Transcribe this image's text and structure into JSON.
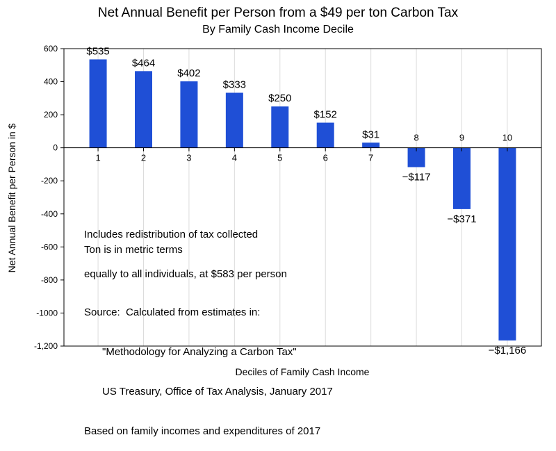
{
  "chart_data": {
    "type": "bar",
    "title": "Net Annual Benefit per Person from a $49 per ton Carbon Tax",
    "subtitle": "By Family Cash Income Decile",
    "xlabel": "Deciles of Family Cash Income",
    "ylabel": "Net Annual Benefit per Person in $",
    "categories": [
      "1",
      "2",
      "3",
      "4",
      "5",
      "6",
      "7",
      "8",
      "9",
      "10"
    ],
    "values": [
      535,
      464,
      402,
      333,
      250,
      152,
      31,
      -117,
      -371,
      -1166
    ],
    "data_labels": [
      "$535",
      "$464",
      "$402",
      "$333",
      "$250",
      "$152",
      "$31",
      "−$117",
      "−$371",
      "−$1,166"
    ],
    "ylim": [
      -1200,
      600
    ],
    "yticks": [
      600,
      400,
      200,
      0,
      -200,
      -400,
      -600,
      -800,
      -1000,
      -1200
    ],
    "ytick_labels": [
      "600",
      "400",
      "200",
      "0",
      "-200",
      "-400",
      "-600",
      "-800",
      "-1000",
      "-1,200"
    ],
    "bar_color": "#1f4fd6",
    "grid": "vertical",
    "annotations": {
      "redistribution_line1": "Includes redistribution of tax collected",
      "redistribution_line2": "equally to all individuals, at $583 per person",
      "ton_note": "Ton is in metric terms",
      "source_line1": "Source:  Calculated from estimates in:",
      "source_line2": "\"Methodology for Analyzing a Carbon Tax\"",
      "source_line3": "US Treasury, Office of Tax Analysis, January 2017",
      "source_line4": "Based on family incomes and expenditures of 2017"
    }
  }
}
